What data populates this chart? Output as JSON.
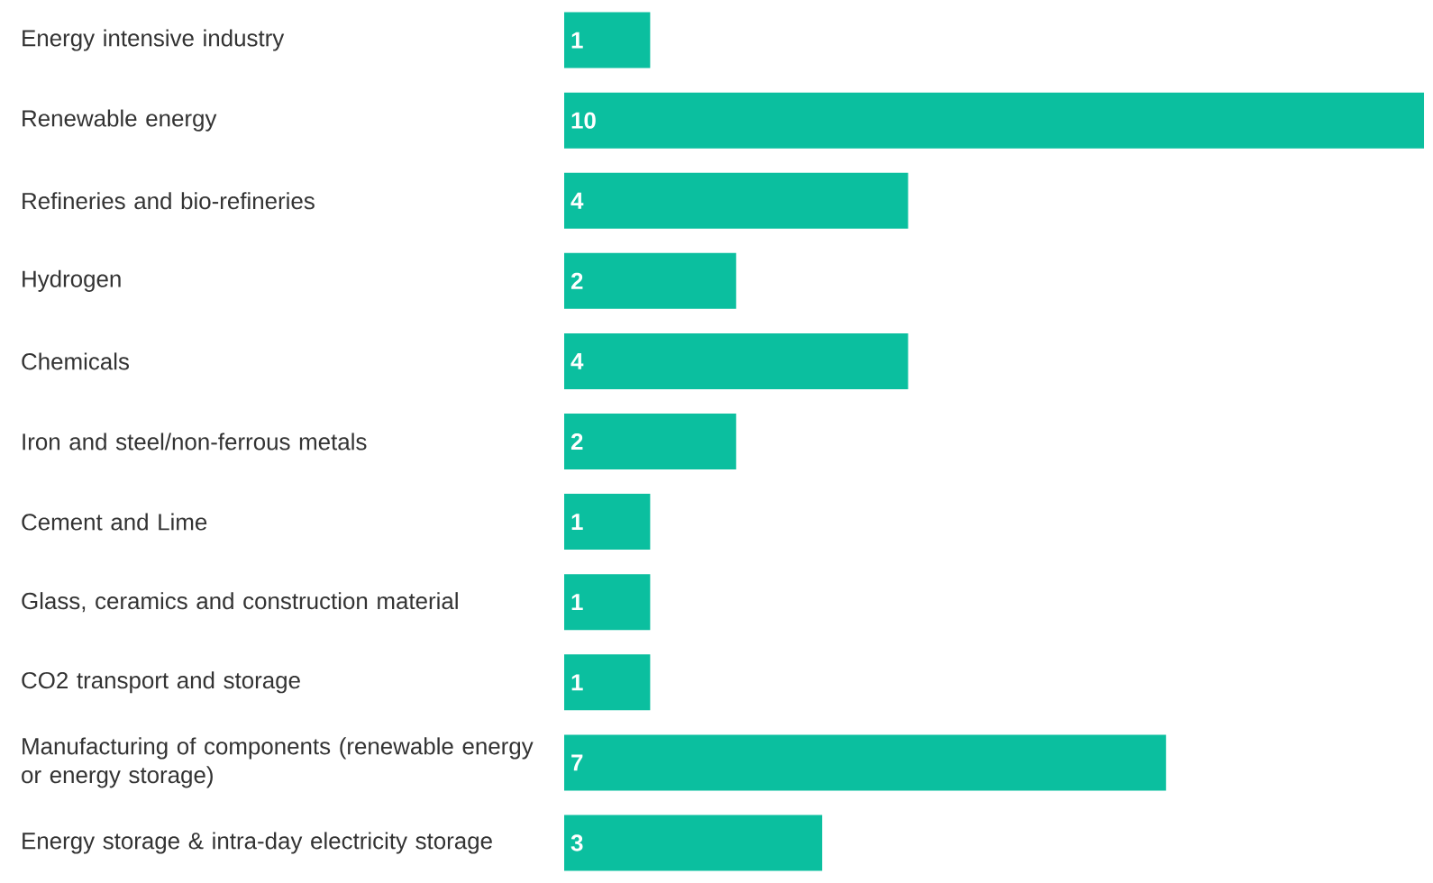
{
  "chart_data": {
    "type": "bar",
    "orientation": "horizontal",
    "data_labels": true,
    "color": "#0bbf9f",
    "categories": [
      "Energy intensive industry",
      "Renewable energy",
      "Refineries and bio-refineries",
      "Hydrogen",
      "Chemicals",
      "Iron and steel/non-ferrous metals",
      "Cement and Lime",
      "Glass, ceramics and construction material",
      "CO2 transport and storage",
      "Manufacturing of components (renewable energy or energy storage)",
      "Energy storage & intra-day electricity storage"
    ],
    "values": [
      1,
      10,
      4,
      2,
      4,
      2,
      1,
      1,
      1,
      7,
      3
    ]
  }
}
